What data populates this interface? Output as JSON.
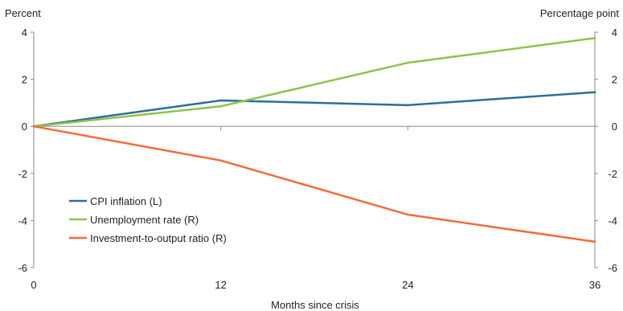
{
  "chart_data": {
    "type": "line",
    "title": "",
    "left_unit": "Percent",
    "right_unit": "Percentage point",
    "xlabel": "Months since crisis",
    "x": [
      0,
      12,
      24,
      36
    ],
    "xlim": [
      0,
      36
    ],
    "ylim": [
      -6,
      4
    ],
    "y_ticks": [
      4,
      2,
      0,
      -2,
      -4,
      -6
    ],
    "y_tick_labels": [
      "4",
      "2",
      "0",
      "-2",
      "-4",
      "-6"
    ],
    "x_tick_labels": [
      "0",
      "12",
      "24",
      "36"
    ],
    "grid": false,
    "legend_position": "bottom-left",
    "series": [
      {
        "name": "CPI inflation (L)",
        "axis": "left",
        "color": "#2e6e96",
        "values": [
          0,
          1.1,
          0.9,
          1.45
        ]
      },
      {
        "name": "Unemployment rate (R)",
        "axis": "right",
        "color": "#8dc34a",
        "values": [
          0,
          0.85,
          2.7,
          3.75
        ]
      },
      {
        "name": "Investment-to-output ratio (R)",
        "axis": "right",
        "color": "#f26a3d",
        "values": [
          0,
          -1.45,
          -3.75,
          -4.9
        ]
      }
    ]
  }
}
